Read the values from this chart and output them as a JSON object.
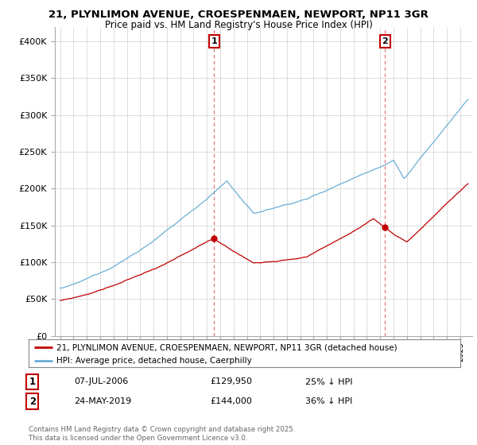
{
  "title": "21, PLYNLIMON AVENUE, CROESPENMAEN, NEWPORT, NP11 3GR",
  "subtitle": "Price paid vs. HM Land Registry's House Price Index (HPI)",
  "legend_line1": "21, PLYNLIMON AVENUE, CROESPENMAEN, NEWPORT, NP11 3GR (detached house)",
  "legend_line2": "HPI: Average price, detached house, Caerphilly",
  "transaction1_label": "1",
  "transaction1_date": "07-JUL-2006",
  "transaction1_price": "£129,950",
  "transaction1_hpi": "25% ↓ HPI",
  "transaction2_label": "2",
  "transaction2_date": "24-MAY-2019",
  "transaction2_price": "£144,000",
  "transaction2_hpi": "36% ↓ HPI",
  "footnote": "Contains HM Land Registry data © Crown copyright and database right 2025.\nThis data is licensed under the Open Government Licence v3.0.",
  "hpi_color": "#6aaed6",
  "price_color": "#c00000",
  "vline_color": "#e05050",
  "grid_color": "#d0d0d0",
  "background_color": "#ffffff",
  "ylim": [
    0,
    420000
  ],
  "yticks": [
    0,
    50000,
    100000,
    150000,
    200000,
    250000,
    300000,
    350000,
    400000
  ],
  "purchase1_year": 2006.54,
  "purchase1_price": 129950,
  "purchase2_year": 2019.37,
  "purchase2_price": 144000
}
